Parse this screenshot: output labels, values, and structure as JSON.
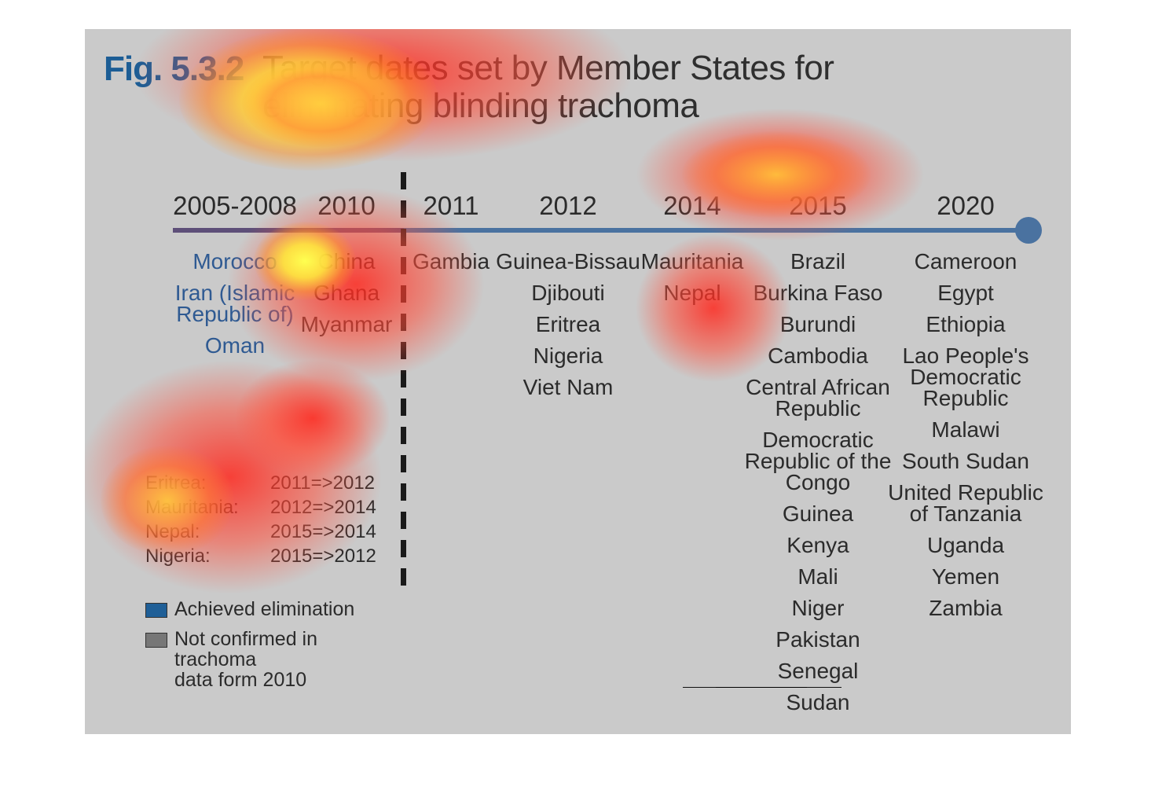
{
  "figure": {
    "number": "Fig. 5.3.2",
    "title": "Target dates set by Member States for eliminating blinding trachoma"
  },
  "timeline": [
    {
      "year": "2005-2008",
      "countries": [
        {
          "name": "Morocco",
          "status": "achieved"
        },
        {
          "name": "Iran (Islamic Republic of)",
          "status": "achieved"
        },
        {
          "name": "Oman",
          "status": "achieved"
        }
      ]
    },
    {
      "year": "2010",
      "countries": [
        {
          "name": "China",
          "status": "not_confirmed"
        },
        {
          "name": "Ghana",
          "status": "not_confirmed"
        },
        {
          "name": "Myanmar",
          "status": "not_confirmed"
        }
      ]
    },
    {
      "year": "2011",
      "countries": [
        {
          "name": "Gambia"
        }
      ]
    },
    {
      "year": "2012",
      "countries": [
        {
          "name": "Guinea-Bissau"
        },
        {
          "name": "Djibouti"
        },
        {
          "name": "Eritrea"
        },
        {
          "name": "Nigeria"
        },
        {
          "name": "Viet Nam"
        }
      ]
    },
    {
      "year": "2014",
      "countries": [
        {
          "name": "Mauritania"
        },
        {
          "name": "Nepal"
        }
      ]
    },
    {
      "year": "2015",
      "countries": [
        {
          "name": "Brazil"
        },
        {
          "name": "Burkina Faso"
        },
        {
          "name": "Burundi"
        },
        {
          "name": "Cambodia"
        },
        {
          "name": "Central African Republic"
        },
        {
          "name": "Democratic Republic of the Congo"
        },
        {
          "name": "Guinea"
        },
        {
          "name": "Kenya"
        },
        {
          "name": "Mali"
        },
        {
          "name": "Niger"
        },
        {
          "name": "Pakistan"
        },
        {
          "name": "Senegal"
        },
        {
          "name": "Sudan"
        }
      ]
    },
    {
      "year": "2020",
      "countries": [
        {
          "name": "Cameroon"
        },
        {
          "name": "Egypt"
        },
        {
          "name": "Ethiopia"
        },
        {
          "name": "Lao People's Democratic Republic"
        },
        {
          "name": "Malawi"
        },
        {
          "name": "South Sudan"
        },
        {
          "name": "United Republic of Tanzania"
        },
        {
          "name": "Uganda"
        },
        {
          "name": "Yemen"
        },
        {
          "name": "Zambia"
        }
      ]
    }
  ],
  "target_changes": [
    {
      "country": "Eritrea:",
      "change": "2011=>2012"
    },
    {
      "country": "Mauritania:",
      "change": "2012=>2014"
    },
    {
      "country": "Nepal:",
      "change": "2015=>2014"
    },
    {
      "country": "Nigeria:",
      "change": "2015=>2012"
    }
  ],
  "legend": {
    "achieved": {
      "label": "Achieved elimination",
      "color": "#1f5f97"
    },
    "not_confirmed": {
      "label": "Not confirmed in trachoma data form 2010",
      "color": "#777777"
    }
  }
}
